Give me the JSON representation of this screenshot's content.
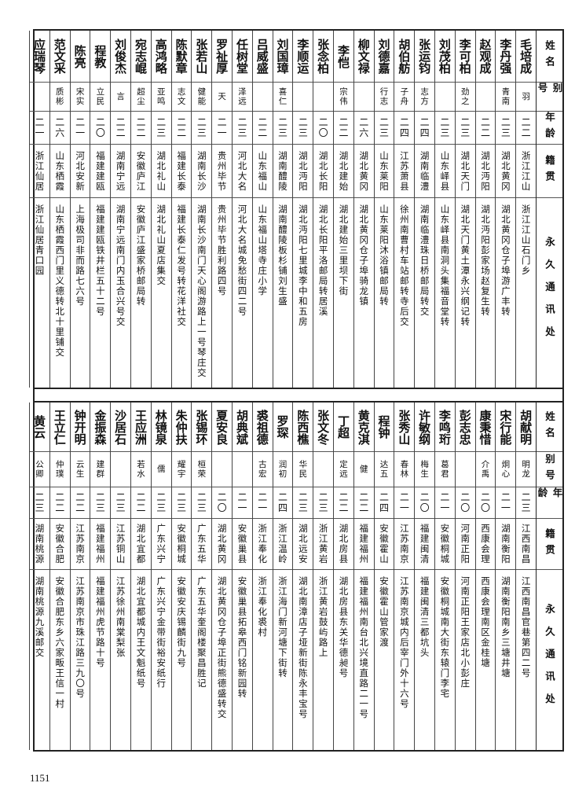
{
  "headers": {
    "name": "姓名",
    "alias": "别号",
    "age": "年龄",
    "native": "籍贯",
    "address": "永久通讯处"
  },
  "top": [
    {
      "name": "毛培成",
      "alias": "羽",
      "age": "二二",
      "native": "浙江江山",
      "address": "浙江江山石门乡"
    },
    {
      "name": "李丹强",
      "alias": "青南",
      "age": "二三",
      "native": "湖北黄冈",
      "address": "湖北黄冈仓子埠游广丰转"
    },
    {
      "name": "赵观成",
      "alias": "",
      "age": "二二",
      "native": "湖北沔阳",
      "address": "湖北沔阳彭家场赵复生转"
    },
    {
      "name": "李可柏",
      "alias": "劲之",
      "age": "二三",
      "native": "湖北天门",
      "address": "湖北天门黄土潭永兴纲记转"
    },
    {
      "name": "刘茂柏",
      "alias": "",
      "age": "二三",
      "native": "山东峄县",
      "address": "山东峄县南洞头集福音堂转"
    },
    {
      "name": "张运钧",
      "alias": "志方",
      "age": "二四",
      "native": "湖南临澧",
      "address": "湖南临澧珠日桥邮局转交"
    },
    {
      "name": "胡伯舫",
      "alias": "子舟",
      "age": "二四",
      "native": "江苏萧县",
      "address": "徐州南曹村车站邮转寺后交"
    },
    {
      "name": "刘德嘉",
      "alias": "行志",
      "age": "二三",
      "native": "山东莱阳",
      "address": "山东莱阳沐浴镇邮局转"
    },
    {
      "name": "柳文禄",
      "alias": "",
      "age": "二六",
      "native": "湖北黄冈",
      "address": "湖北黄冈仓子埠骑龙镇"
    },
    {
      "name": "李恺",
      "alias": "宗伟",
      "age": "二二",
      "native": "湖北建始",
      "address": "湖北建始三里坝下街"
    },
    {
      "name": "张念柏",
      "alias": "",
      "age": "二〇",
      "native": "湖北长阳",
      "address": "湖北长阳平洛邮局转居溪"
    },
    {
      "name": "李顺运",
      "alias": "",
      "age": "二三",
      "native": "湖北沔阳",
      "address": "湖北沔阳七里城李中和五房"
    },
    {
      "name": "刘国璋",
      "alias": "喜仁",
      "age": "二三",
      "native": "湖南醴陵",
      "address": "湖南醴陵板杉铺刘生盛"
    },
    {
      "name": "吕威盛",
      "alias": "",
      "age": "二二",
      "native": "山东福山",
      "address": "山东福山塔寺庄小学"
    },
    {
      "name": "任树堂",
      "alias": "泽远",
      "age": "二三",
      "native": "河北大名",
      "address": "河北大名城免愁街四二号"
    },
    {
      "name": "罗祉厚",
      "alias": "天",
      "age": "二一",
      "native": "贵州毕节",
      "address": "贵州毕节胜利路四号"
    },
    {
      "name": "张若山",
      "alias": "健能",
      "age": "二三",
      "native": "湖南长沙",
      "address": "湖南长沙南门天心阁游路上一号琴庄交"
    },
    {
      "name": "陈默章",
      "alias": "志文",
      "age": "二二",
      "native": "福建长泰",
      "address": "福建长泰仁发号转花洋社交"
    },
    {
      "name": "高鸿略",
      "alias": "亚鸣",
      "age": "二三",
      "native": "湖北礼山",
      "address": "湖北礼山夏店集交"
    },
    {
      "name": "宛志崐",
      "alias": "超尘",
      "age": "二二",
      "native": "安徽庐江",
      "address": "安徽庐江盛家桥邮局转"
    },
    {
      "name": "刘俊杰",
      "alias": "言",
      "age": "二二",
      "native": "湖南宁远",
      "address": "湖南宁远南门内玉合兴号交"
    },
    {
      "name": "程教",
      "alias": "立民",
      "age": "二〇",
      "native": "福建建瓯",
      "address": "福建建瓯铁井栏五十二号"
    },
    {
      "name": "陈亮",
      "alias": "宋实",
      "age": "二一",
      "native": "河北安新",
      "address": "上海极司非而路七六号"
    },
    {
      "name": "范文采",
      "alias": "质彬",
      "age": "二六",
      "native": "山东栖霞",
      "address": "山东栖霞西门里义德转北十里铺交"
    },
    {
      "name": "应瑞琴",
      "alias": "",
      "age": "二一",
      "native": "浙江仙居",
      "address": "浙江仙居青口园"
    }
  ],
  "bottom": [
    {
      "name": "胡献明",
      "alias": "明龙",
      "age": "二三",
      "native": "江西南昌",
      "address": "江西南昌官巷第四二号"
    },
    {
      "name": "宋行能",
      "alias": "炯心",
      "age": "二一",
      "native": "湖南衡阳",
      "address": "湖南衡阳南乡三塘井塘"
    },
    {
      "name": "康秉惜",
      "alias": "介禹",
      "age": "二〇",
      "native": "西康会理",
      "address": "西康会理南区金桂塘"
    },
    {
      "name": "彭志忠",
      "alias": "",
      "age": "二〇",
      "native": "河南正阳",
      "address": "河南正阳王家店北小彭庄"
    },
    {
      "name": "李鸣珩",
      "alias": "葛君",
      "age": "二一",
      "native": "安徽桐城",
      "address": "安徽桐城南大街东辕门李宅"
    },
    {
      "name": "许敏纲",
      "alias": "梅生",
      "age": "二〇",
      "native": "福建闽清",
      "address": "福建闽清三都坑头"
    },
    {
      "name": "张秀山",
      "alias": "春林",
      "age": "二一",
      "native": "江苏南京",
      "address": "江苏南京城内后宰门外十六号"
    },
    {
      "name": "程钟",
      "alias": "达五",
      "age": "二四",
      "native": "安徽霍山",
      "address": "安徽霍山管家渡"
    },
    {
      "name": "黄克淇",
      "alias": "健",
      "age": "二二",
      "native": "福建福州",
      "address": "福建福州南台北兴境直路二一号"
    },
    {
      "name": "丁超",
      "alias": "定远",
      "age": "二二",
      "native": "湖北房县",
      "address": "湖北房县东关华德昶号"
    },
    {
      "name": "张文冬",
      "alias": "",
      "age": "二三",
      "native": "浙江黄岩",
      "address": "浙江黄岩鼓屿路上"
    },
    {
      "name": "陈西樵",
      "alias": "华民",
      "age": "二三",
      "native": "湖北远安",
      "address": "湖北南漳店子垭新街陈永丰宝号"
    },
    {
      "name": "罗琛",
      "alias": "润初",
      "age": "二四",
      "native": "浙江温岭",
      "address": "浙江海门新河塘下街转"
    },
    {
      "name": "裘祖德",
      "alias": "古宏",
      "age": "二一",
      "native": "浙江奉化",
      "address": "浙江奉化裘村"
    },
    {
      "name": "胡典斌",
      "alias": "",
      "age": "二一",
      "native": "安徽巢县",
      "address": "安徽巢县拓皋西门铭新园转"
    },
    {
      "name": "夏安良",
      "alias": "",
      "age": "二〇",
      "native": "湖北黄冈",
      "address": "湖北黄冈仓子埠正街熊德盛转交"
    },
    {
      "name": "张锡环",
      "alias": "桓荣",
      "age": "二三",
      "native": "广东五华",
      "address": "广东五华奎阁楼聚昌胜记"
    },
    {
      "name": "朱仲扶",
      "alias": "耀宇",
      "age": "二三",
      "native": "安徽桐城",
      "address": "安徽安庆锡麟街九号"
    },
    {
      "name": "林镜泉",
      "alias": "儒",
      "age": "二三",
      "native": "广东兴宁",
      "address": "广东兴宁金带街裕安纸行"
    },
    {
      "name": "王应洲",
      "alias": "若水",
      "age": "二二",
      "native": "湖北宜都",
      "address": "湖北宜都城内王文魁纸号"
    },
    {
      "name": "沙居石",
      "alias": "",
      "age": "二三",
      "native": "江苏铜山",
      "address": "江苏徐州南棠梨张"
    },
    {
      "name": "金振森",
      "alias": "建群",
      "age": "二三",
      "native": "福建福州",
      "address": "福建福州虎节路十号"
    },
    {
      "name": "钟开明",
      "alias": "云生",
      "age": "二二",
      "native": "江苏南京",
      "address": "江苏南京市珠江路三九〇号"
    },
    {
      "name": "王立仁",
      "alias": "仲璞",
      "age": "二二",
      "native": "安徽合肥",
      "address": "安徽合肥东乡六家畈王信一村"
    },
    {
      "name": "黄云",
      "alias": "公卿",
      "age": "二三",
      "native": "湖南桃源",
      "address": "湖南桃源九溪邮交"
    }
  ],
  "page_number": "1151"
}
